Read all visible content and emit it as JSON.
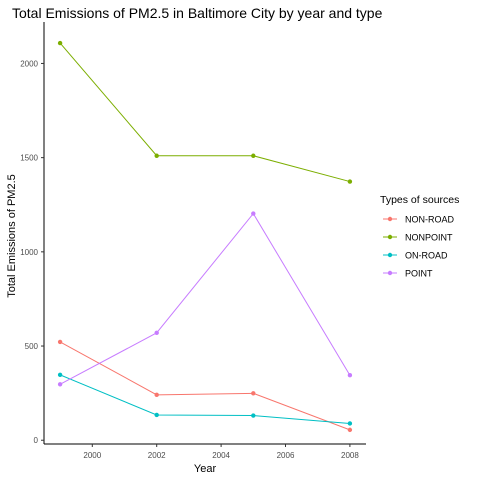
{
  "chart_data": {
    "type": "line",
    "title": "Total Emissions of PM2.5 in Baltimore City by year and type",
    "xlabel": "Year",
    "ylabel": "Total Emissions of PM2.5",
    "x": [
      1999,
      2002,
      2005,
      2008
    ],
    "xlim": [
      1998.5,
      2008.5
    ],
    "ylim": [
      -20,
      2220
    ],
    "xticks": [
      2000,
      2002,
      2004,
      2006,
      2008
    ],
    "yticks": [
      0,
      500,
      1000,
      1500,
      2000
    ],
    "grid": false,
    "legend": {
      "title": "Types of sources",
      "position": "right"
    },
    "series": [
      {
        "name": "NON-ROAD",
        "color": "#F8766D",
        "values": [
          522,
          241,
          249,
          55
        ]
      },
      {
        "name": "NONPOINT",
        "color": "#7CAE00",
        "values": [
          2108,
          1510,
          1510,
          1373
        ]
      },
      {
        "name": "ON-ROAD",
        "color": "#00BFC4",
        "values": [
          347,
          134,
          131,
          89
        ]
      },
      {
        "name": "POINT",
        "color": "#C77CFF",
        "values": [
          297,
          570,
          1203,
          345
        ]
      }
    ]
  }
}
